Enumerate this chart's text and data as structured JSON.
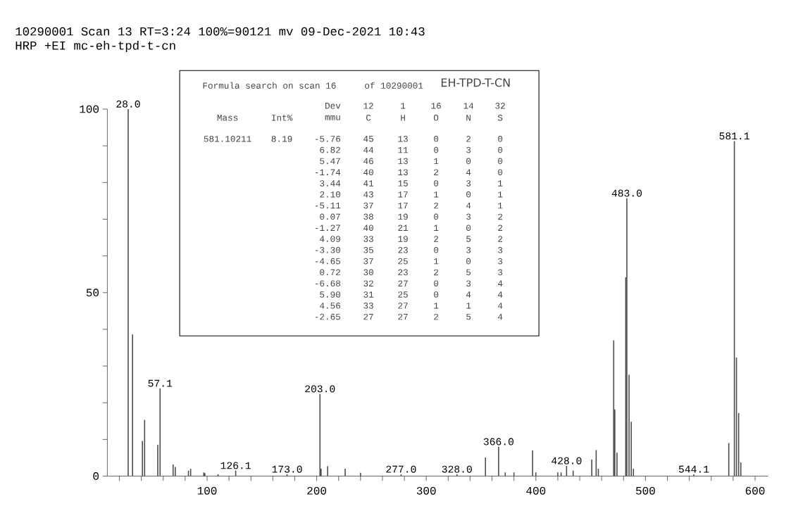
{
  "chart_data": {
    "type": "bar",
    "color": "#4d4d4d",
    "x": [
      28.0,
      32,
      41,
      43,
      55,
      57.1,
      69,
      71,
      83,
      85,
      97,
      98,
      110,
      126.1,
      173.0,
      203.0,
      204,
      210,
      226,
      240,
      277.0,
      328.0,
      354,
      366.0,
      372,
      380,
      397,
      400,
      420,
      423,
      428.0,
      434,
      451,
      455,
      457,
      471,
      472,
      474,
      482,
      483.0,
      485,
      487,
      489,
      544.1,
      576,
      581.1,
      583,
      585,
      587
    ],
    "values": [
      100,
      38.6,
      9.6,
      15.3,
      8.5,
      23.9,
      3.2,
      2.5,
      1.5,
      2.0,
      1.0,
      0.8,
      0.5,
      1.5,
      0.5,
      22.4,
      2.0,
      2.7,
      2.0,
      0.9,
      0.5,
      0.5,
      5.1,
      8.0,
      1.0,
      1.0,
      7.0,
      1.0,
      1.0,
      1.0,
      2.8,
      1.5,
      4.5,
      7.1,
      2.0,
      37.0,
      18.2,
      6.4,
      54.2,
      75.7,
      27.6,
      14.8,
      2.0,
      0.5,
      9.0,
      91.3,
      32.3,
      17.2,
      3.7
    ],
    "xlim": [
      9,
      612
    ],
    "ylim": [
      0,
      100
    ],
    "xticks": [
      {
        "value": 20,
        "label": null
      },
      {
        "value": 40,
        "label": null
      },
      {
        "value": 60,
        "label": null
      },
      {
        "value": 80,
        "label": null
      },
      100,
      {
        "value": 120,
        "label": null
      },
      {
        "value": 140,
        "label": null
      },
      {
        "value": 160,
        "label": null
      },
      {
        "value": 180,
        "label": null
      },
      200,
      {
        "value": 220,
        "label": null
      },
      {
        "value": 240,
        "label": null
      },
      {
        "value": 260,
        "label": null
      },
      {
        "value": 280,
        "label": null
      },
      300,
      {
        "value": 320,
        "label": null
      },
      {
        "value": 340,
        "label": null
      },
      {
        "value": 360,
        "label": null
      },
      {
        "value": 380,
        "label": null
      },
      400,
      {
        "value": 420,
        "label": null
      },
      {
        "value": 440,
        "label": null
      },
      {
        "value": 460,
        "label": null
      },
      {
        "value": 480,
        "label": null
      },
      500,
      {
        "value": 520,
        "label": null
      },
      {
        "value": 540,
        "label": null
      },
      {
        "value": 560,
        "label": null
      },
      {
        "value": 580,
        "label": null
      },
      600
    ],
    "yticks": [
      0,
      {
        "value": 10,
        "label": null
      },
      {
        "value": 20,
        "label": null
      },
      {
        "value": 30,
        "label": null
      },
      {
        "value": 40,
        "label": null
      },
      50,
      {
        "value": 60,
        "label": null
      },
      {
        "value": 70,
        "label": null
      },
      {
        "value": 80,
        "label": null
      },
      {
        "value": 90,
        "label": null
      },
      100
    ],
    "annotations": [
      "10290001 Scan 13  RT=3:24  100%=90121 mv 09-Dec-2021 10:43",
      "HRP  +EI mc-eh-tpd-t-cn",
      {
        "text": "28.0",
        "x": 28.0,
        "y": 100
      },
      {
        "text": "57.1",
        "x": 57.1,
        "y": 23.9
      },
      {
        "text": "126.1",
        "x": 126.1,
        "y": 1.5
      },
      {
        "text": "173.0",
        "x": 173.0,
        "y": 0.5
      },
      {
        "text": "203.0",
        "x": 203.0,
        "y": 22.4
      },
      {
        "text": "277.0",
        "x": 277.0,
        "y": 0.5
      },
      {
        "text": "328.0",
        "x": 328.0,
        "y": 0.5
      },
      {
        "text": "366.0",
        "x": 366.0,
        "y": 8.0
      },
      {
        "text": "428.0",
        "x": 428.0,
        "y": 2.8
      },
      {
        "text": "483.0",
        "x": 483.0,
        "y": 75.7
      },
      {
        "text": "544.1",
        "x": 544.1,
        "y": 0.5
      },
      {
        "text": "581.1",
        "x": 581.1,
        "y": 91.3
      },
      "Formula search on scan 16",
      "of 10290001",
      "EH-TPD-T-CN",
      "Dev",
      "12",
      "1",
      "16",
      "14",
      "32",
      "Mass",
      "Int%",
      "mmu",
      "C",
      "H",
      "O",
      "N",
      "S",
      "581.10211",
      "8.19",
      "-5.76",
      "45",
      "13",
      "0",
      "2",
      "0",
      "6.82",
      "44",
      "11",
      "0",
      "3",
      "0",
      "5.47",
      "46",
      "13",
      "1",
      "0",
      "0",
      "-1.74",
      "40",
      "13",
      "2",
      "4",
      "0",
      "3.44",
      "41",
      "15",
      "0",
      "3",
      "1",
      "2.10",
      "43",
      "17",
      "1",
      "0",
      "1",
      "-5.11",
      "37",
      "17",
      "2",
      "4",
      "1",
      "0.07",
      "38",
      "19",
      "0",
      "3",
      "2",
      "-1.27",
      "40",
      "21",
      "1",
      "0",
      "2",
      "4.09",
      "33",
      "19",
      "2",
      "5",
      "2",
      "-3.30",
      "35",
      "23",
      "0",
      "3",
      "3",
      "-4.65",
      "37",
      "25",
      "1",
      "0",
      "3",
      "0.72",
      "30",
      "23",
      "2",
      "5",
      "3",
      "-6.68",
      "32",
      "27",
      "0",
      "3",
      "4",
      "5.90",
      "31",
      "25",
      "0",
      "4",
      "4",
      "4.56",
      "33",
      "27",
      "1",
      "1",
      "4",
      "-2.65",
      "27",
      "27",
      "2",
      "5",
      "4"
    ]
  }
}
